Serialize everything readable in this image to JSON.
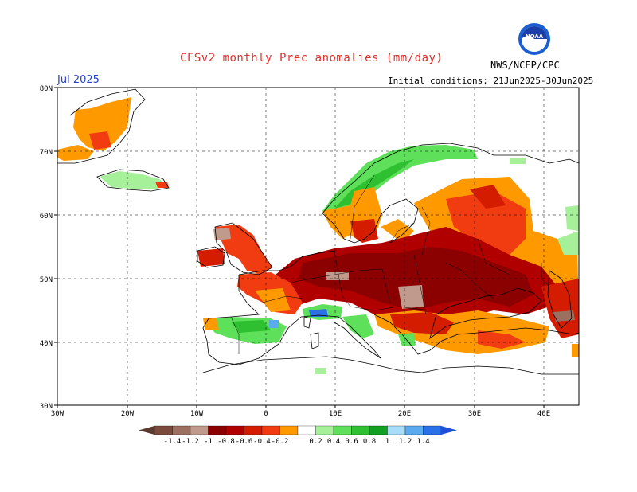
{
  "title": "CFSv2 monthly Prec anomalies (mm/day)",
  "period": "Jul 2025",
  "initial_conditions": "Initial conditions: 21Jun2025-30Jun2025",
  "agency": "NWS/NCEP/CPC",
  "logo_text": "NOAA",
  "map": {
    "lat_labels": [
      "30N",
      "40N",
      "50N",
      "60N",
      "70N",
      "80N"
    ],
    "lon_labels": [
      "30W",
      "20W",
      "10W",
      "0",
      "10E",
      "20E",
      "30E",
      "40E"
    ]
  },
  "legend": {
    "labels": [
      "-1.4",
      "-1.2",
      "-1",
      "-0.8",
      "-0.6",
      "-0.4",
      "-0.2",
      "0.2",
      "0.4",
      "0.6",
      "0.8",
      "1",
      "1.2",
      "1.4"
    ],
    "colors": [
      "#7a4b3d",
      "#9c7060",
      "#c09a8c",
      "#8b0000",
      "#b00000",
      "#d41c00",
      "#f03c10",
      "#ff9900",
      "#ffffff",
      "#a6f09a",
      "#5ee05a",
      "#2fc032",
      "#12a022",
      "#a8dcf8",
      "#5aaaf0",
      "#2a70e8"
    ]
  },
  "anomaly_regions": [
    {
      "color": "#ff9900",
      "cells": "greenland-east"
    },
    {
      "color": "#8b0000",
      "cells": "central-europe"
    }
  ]
}
